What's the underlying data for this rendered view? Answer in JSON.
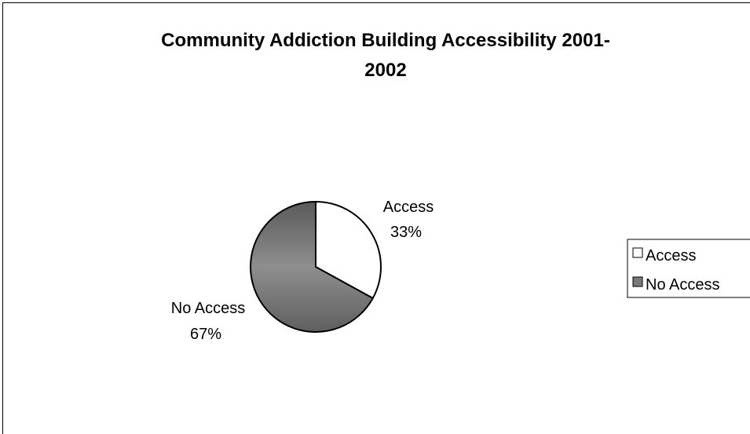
{
  "chart_data": {
    "type": "pie",
    "title_line1": "Community Addiction Building Accessibility 2001-",
    "title_line2": "2002",
    "categories": [
      "Access",
      "No Access"
    ],
    "values": [
      33,
      67
    ],
    "value_labels": [
      "33%",
      "67%"
    ],
    "legend_position": "right",
    "colors": [
      "#ffffff",
      "#7a7a7a"
    ]
  }
}
